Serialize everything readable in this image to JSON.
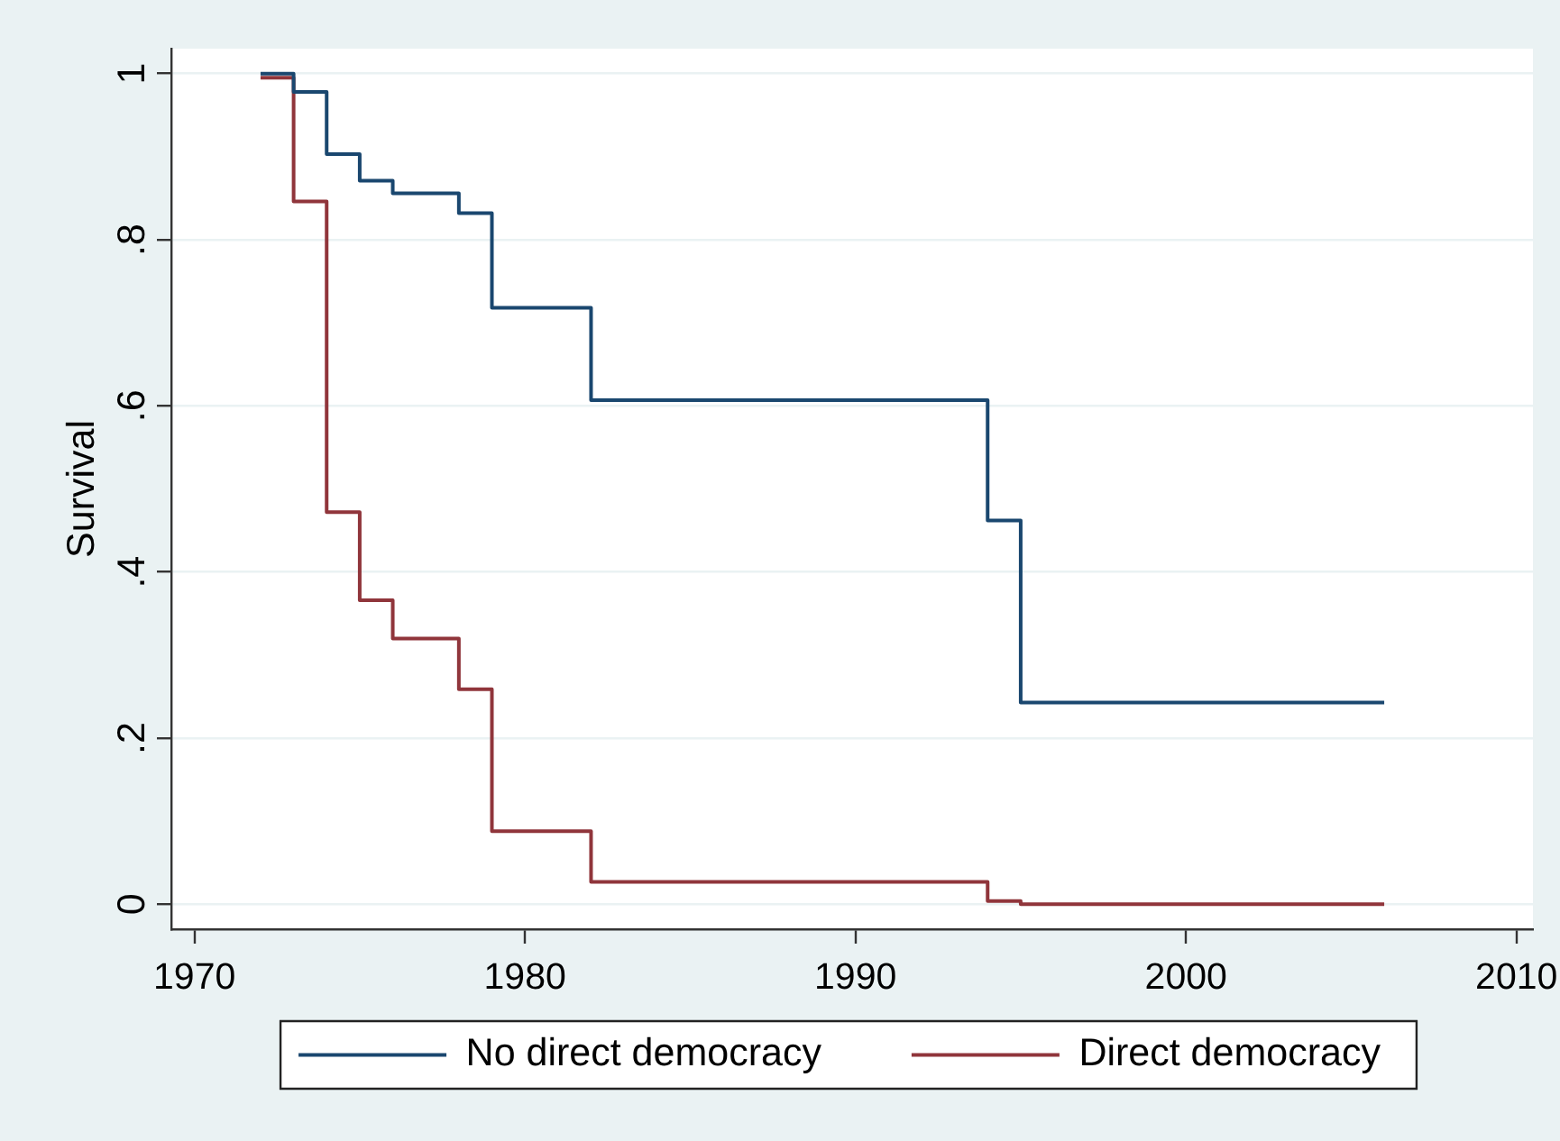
{
  "chart_data": {
    "type": "step",
    "ylabel": "Survival",
    "x": [
      1972,
      1973,
      1974,
      1975,
      1976,
      1977,
      1978,
      1979,
      1980,
      1981,
      1982,
      1983,
      1984,
      1985,
      1986,
      1987,
      1988,
      1989,
      1990,
      1991,
      1992,
      1993,
      1994,
      1995,
      1996,
      1997,
      1998,
      1999,
      2000,
      2001,
      2002,
      2003,
      2004,
      2005,
      2006
    ],
    "series": [
      {
        "name": "No direct democracy",
        "color": "#1a476f",
        "values": [
          1.0,
          0.978,
          0.903,
          0.871,
          0.856,
          0.856,
          0.832,
          0.718,
          0.718,
          0.718,
          0.607,
          0.607,
          0.607,
          0.607,
          0.607,
          0.607,
          0.607,
          0.607,
          0.607,
          0.607,
          0.607,
          0.607,
          0.462,
          0.243,
          0.243,
          0.243,
          0.243,
          0.243,
          0.243,
          0.243,
          0.243,
          0.243,
          0.243,
          0.243,
          0.243
        ]
      },
      {
        "name": "Direct democracy",
        "color": "#90353b",
        "values": [
          0.995,
          0.846,
          0.472,
          0.366,
          0.32,
          0.32,
          0.259,
          0.088,
          0.088,
          0.088,
          0.027,
          0.027,
          0.027,
          0.027,
          0.027,
          0.027,
          0.027,
          0.027,
          0.027,
          0.027,
          0.027,
          0.027,
          0.004,
          0,
          0,
          0,
          0,
          0,
          0,
          0,
          0,
          0,
          0,
          0,
          0
        ]
      }
    ],
    "xlim": [
      1969.3,
      2010.5
    ],
    "xticks": [
      1970,
      1980,
      1990,
      2000,
      2010
    ],
    "ylim": [
      -0.03,
      1.03
    ],
    "yticks": [
      0,
      {
        "value": 0.2,
        "label": ".2"
      },
      {
        "value": 0.4,
        "label": ".4"
      },
      {
        "value": 0.6,
        "label": ".6"
      },
      {
        "value": 0.8,
        "label": ".8"
      },
      1
    ],
    "grid": "y",
    "legend": "bottom",
    "marker": "none",
    "line_style": "solid"
  }
}
